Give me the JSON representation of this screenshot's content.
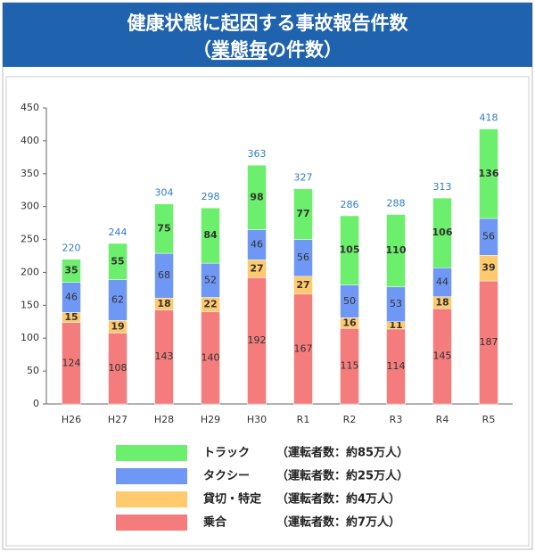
{
  "chart_data": {
    "type": "stacked-bar",
    "title": "健康状態に起因する事故報告件数",
    "subtitle": [
      "（",
      "業態毎",
      "の件数）"
    ],
    "categories": [
      "H26",
      "H27",
      "H28",
      "H29",
      "H30",
      "R1",
      "R2",
      "R3",
      "R4",
      "R5"
    ],
    "series": [
      {
        "name": "乗合",
        "color": "#f47c7c",
        "values": [
          124,
          108,
          143,
          140,
          192,
          167,
          115,
          114,
          145,
          187
        ]
      },
      {
        "name": "貸切・特定",
        "color": "#ffc96e",
        "values": [
          15,
          19,
          18,
          22,
          27,
          27,
          16,
          11,
          18,
          39
        ]
      },
      {
        "name": "タクシー",
        "color": "#6f98f4",
        "values": [
          46,
          62,
          68,
          52,
          46,
          56,
          50,
          53,
          44,
          56
        ]
      },
      {
        "name": "トラック",
        "color": "#6cef6c",
        "values": [
          35,
          55,
          75,
          84,
          98,
          77,
          105,
          110,
          106,
          136
        ]
      }
    ],
    "totals": [
      220,
      244,
      304,
      298,
      363,
      327,
      286,
      288,
      313,
      418
    ],
    "legend_notes": [
      "（運転者数：約7万人）",
      "（運転者数：約4万人）",
      "（運転者数：約25万人）",
      "（運転者数：約85万人）"
    ],
    "ylim": [
      0,
      450
    ],
    "yticks": [
      0,
      50,
      100,
      150,
      200,
      250,
      300,
      350,
      400,
      450
    ]
  }
}
